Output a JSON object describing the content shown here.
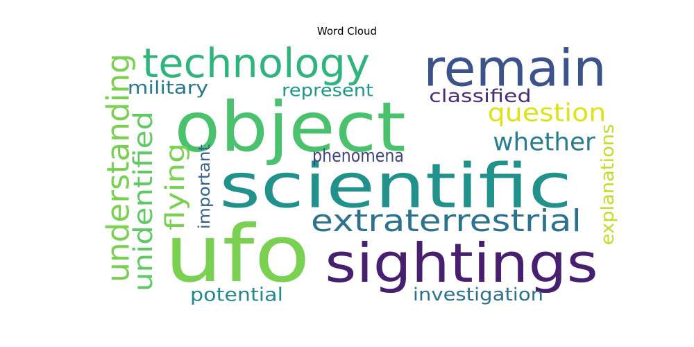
{
  "chart_data": {
    "type": "wordcloud",
    "title": "Word Cloud",
    "words": [
      {
        "text": "ufo",
        "color": "#7ad151"
      },
      {
        "text": "object",
        "color": "#4ac16d"
      },
      {
        "text": "scientific",
        "color": "#21918c"
      },
      {
        "text": "sightings",
        "color": "#481f70"
      },
      {
        "text": "remain",
        "color": "#3b528b"
      },
      {
        "text": "technology",
        "color": "#2fb47c"
      },
      {
        "text": "extraterrestrial",
        "color": "#2c728e"
      },
      {
        "text": "understanding",
        "color": "#7ad151"
      },
      {
        "text": "unidentified",
        "color": "#5ec962"
      },
      {
        "text": "question",
        "color": "#dde318"
      },
      {
        "text": "whether",
        "color": "#287c8e"
      },
      {
        "text": "flying",
        "color": "#7ad151"
      },
      {
        "text": "explanations",
        "color": "#bddf26"
      },
      {
        "text": "military",
        "color": "#2a788e"
      },
      {
        "text": "represent",
        "color": "#1f988b"
      },
      {
        "text": "classified",
        "color": "#472d7b"
      },
      {
        "text": "phenomena",
        "color": "#414487"
      },
      {
        "text": "important",
        "color": "#33638d"
      },
      {
        "text": "potential",
        "color": "#23898e"
      },
      {
        "text": "investigation",
        "color": "#2c728e"
      }
    ]
  }
}
